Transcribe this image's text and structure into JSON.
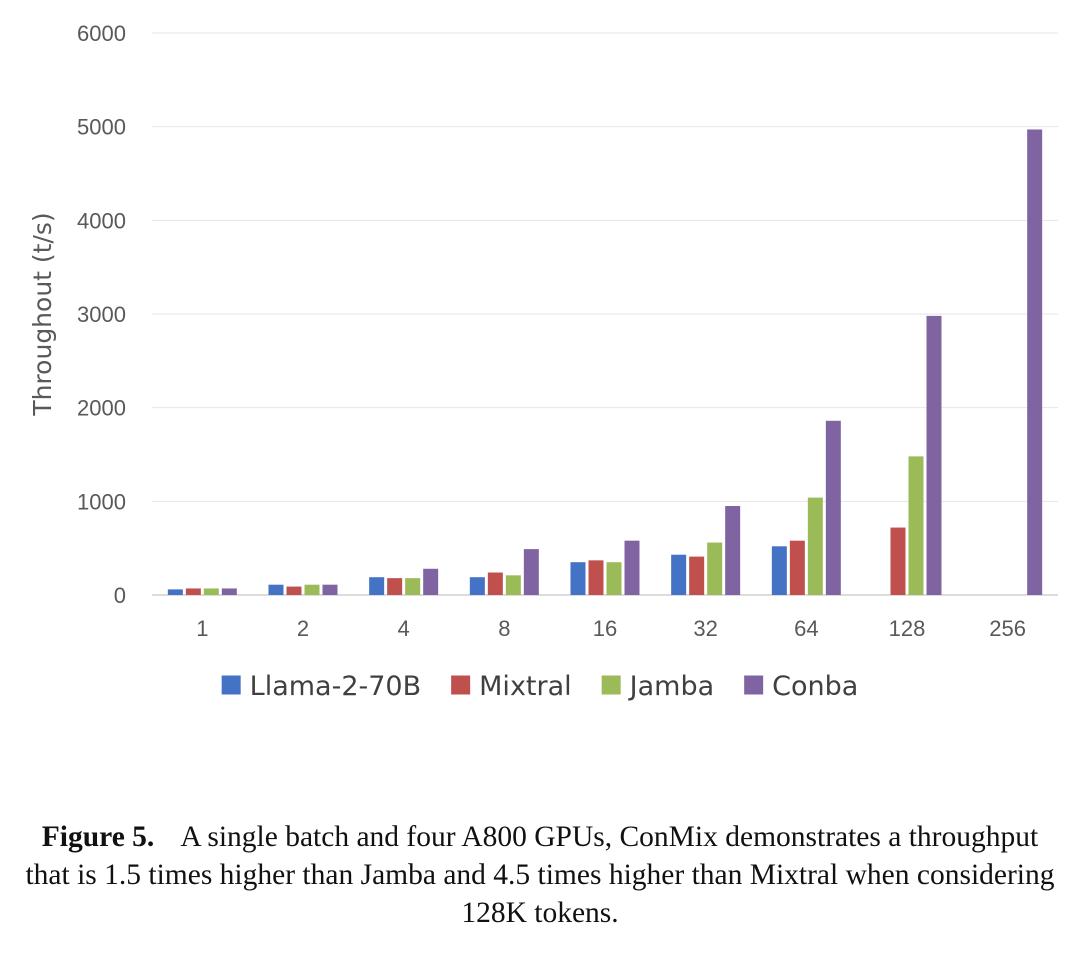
{
  "chart_data": {
    "type": "bar",
    "title": "",
    "xlabel": "",
    "ylabel": "Throughout (t/s)",
    "ylim": [
      0,
      6000
    ],
    "yticks": [
      0,
      1000,
      2000,
      3000,
      4000,
      5000,
      6000
    ],
    "categories": [
      "1",
      "2",
      "4",
      "8",
      "16",
      "32",
      "64",
      "128",
      "256"
    ],
    "grid": true,
    "legend_position": "bottom",
    "series": [
      {
        "name": "Llama-2-70B",
        "color": "#4472C4",
        "values": [
          60,
          110,
          190,
          190,
          350,
          430,
          520,
          null,
          null
        ]
      },
      {
        "name": "Mixtral",
        "color": "#C0504D",
        "values": [
          70,
          90,
          180,
          240,
          370,
          410,
          580,
          720,
          null
        ]
      },
      {
        "name": "Jamba",
        "color": "#9BBB59",
        "values": [
          70,
          110,
          180,
          210,
          350,
          560,
          1040,
          1480,
          null
        ]
      },
      {
        "name": "Conba",
        "color": "#8064A2",
        "values": [
          70,
          110,
          280,
          490,
          580,
          950,
          1860,
          2980,
          4970
        ]
      }
    ]
  },
  "caption": {
    "label": "Figure 5.",
    "text": "A single batch and four A800 GPUs, ConMix demonstrates a throughput that is 1.5 times higher than Jamba and 4.5 times higher than Mixtral when considering 128K tokens."
  }
}
